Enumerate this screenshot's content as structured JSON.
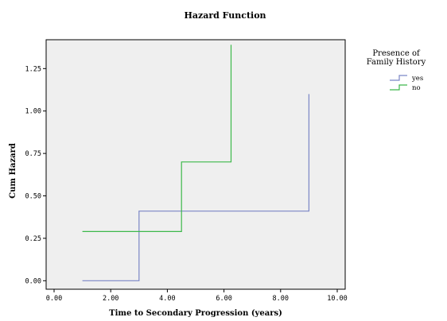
{
  "chart_data": {
    "type": "line",
    "step": true,
    "title": "Hazard Function",
    "xlabel": "Time to Secondary Progression (years)",
    "ylabel": "Cum Hazard",
    "xlim": [
      0,
      10
    ],
    "ylim": [
      -0.05,
      1.42
    ],
    "x_ticks": [
      0,
      2,
      4,
      6,
      8,
      10
    ],
    "x_tick_labels": [
      "0.00",
      "2.00",
      "4.00",
      "6.00",
      "8.00",
      "10.00"
    ],
    "y_ticks": [
      0,
      0.25,
      0.5,
      0.75,
      1.0,
      1.25
    ],
    "y_tick_labels": [
      "0.00",
      "0.25",
      "0.50",
      "0.75",
      "1.00",
      "1.25"
    ],
    "grid": false,
    "legend": {
      "title": "Presence of Family History",
      "title_lines": [
        "Presence of",
        "Family History"
      ],
      "placement": "right"
    },
    "series": [
      {
        "name": "yes",
        "color": "#7b86c6",
        "points": [
          [
            1.0,
            0.0
          ],
          [
            3.0,
            0.0
          ],
          [
            3.0,
            0.41
          ],
          [
            9.0,
            0.41
          ],
          [
            9.0,
            1.1
          ]
        ]
      },
      {
        "name": "no",
        "color": "#3cb84a",
        "points": [
          [
            1.0,
            0.29
          ],
          [
            4.5,
            0.29
          ],
          [
            4.5,
            0.7
          ],
          [
            6.25,
            0.7
          ],
          [
            6.25,
            1.39
          ]
        ]
      }
    ],
    "plot_background": "#efefef"
  }
}
